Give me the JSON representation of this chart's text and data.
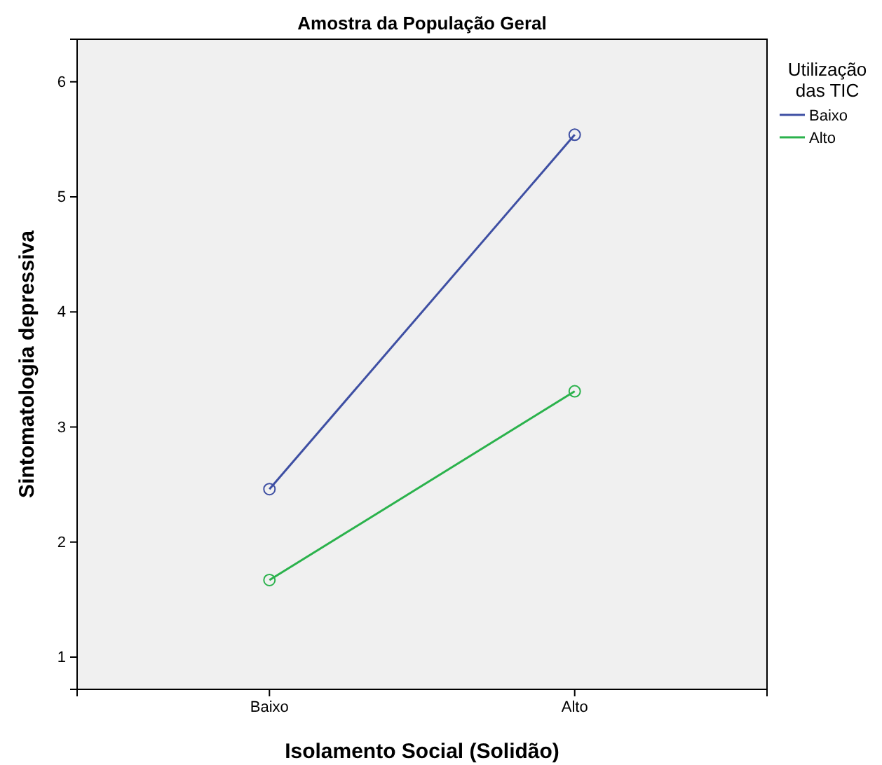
{
  "chart_data": {
    "type": "line",
    "title": "Amostra da População Geral",
    "xlabel": "Isolamento Social (Solidão)",
    "ylabel": "Sintomatologia depressiva",
    "legend_title": "Utilização das TIC",
    "categories": [
      "Baixo",
      "Alto"
    ],
    "series": [
      {
        "name": "Baixo",
        "color": "#3e4fa3",
        "values": [
          2.46,
          5.54
        ]
      },
      {
        "name": "Alto",
        "color": "#2bb24c",
        "values": [
          1.67,
          3.31
        ]
      }
    ],
    "ylim": [
      0.72,
      6.37
    ],
    "yticks": [
      1,
      2,
      3,
      4,
      5,
      6
    ],
    "grid": false,
    "legend": "top right",
    "marker": "circle",
    "line_style": "solid"
  }
}
